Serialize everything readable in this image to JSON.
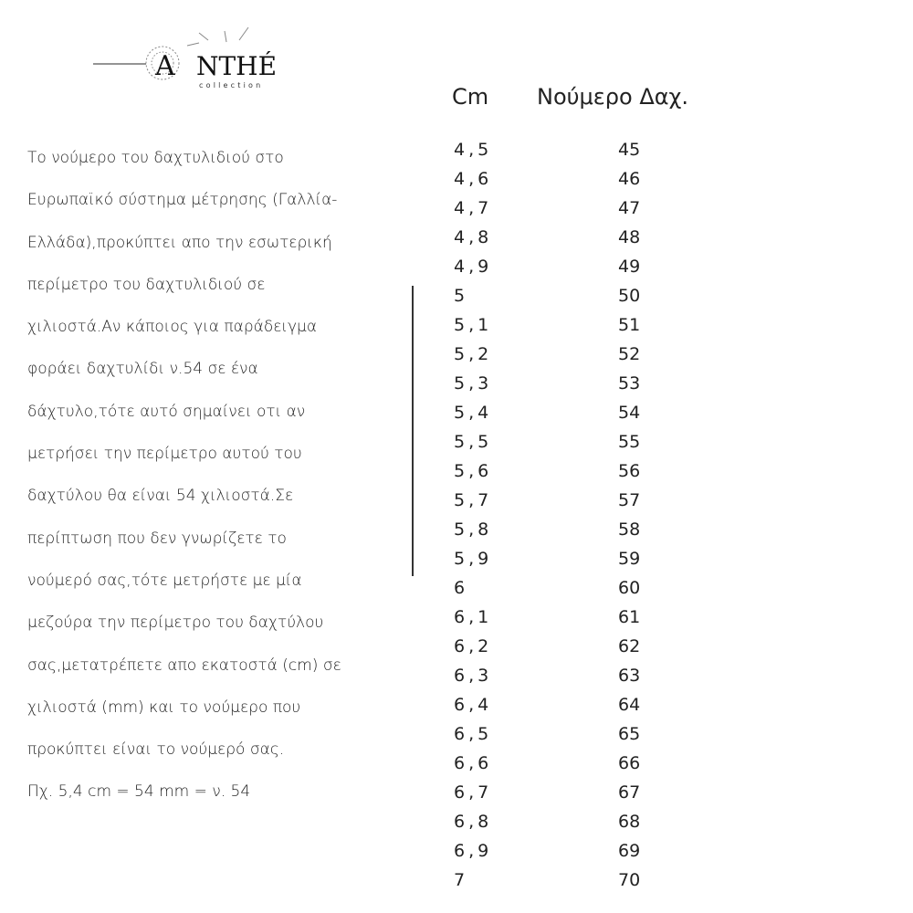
{
  "logo": {
    "text": "ANTHÉ",
    "sub": "collection"
  },
  "paragraph": [
    "Το νούμερο του δαχτυλιδιού στο",
    "Ευρωπαϊκό σύστημα μέτρησης (Γαλλία-",
    "Ελλάδα),προκύπτει απο την εσωτερική",
    "περίμετρο του δαχτυλιδιού σε",
    "χιλιοστά.Αν κάποιος για παράδειγμα",
    "φοράει δαχτυλίδι ν.54 σε ένα",
    "δάχτυλο,τότε αυτό σημαίνει οτι αν",
    "μετρήσει την περίμετρο αυτού του",
    "δαχτύλου θα είναι 54 χιλιοστά.Σε",
    "περίπτωση που δεν γνωρίζετε το",
    "νούμερό σας,τότε μετρήστε με μία",
    "μεζούρα την περίμετρο του δαχτύλου",
    "σας,μετατρέπετε απο εκατοστά (cm) σε",
    "χιλιοστά (mm) και το νούμερο που",
    "προκύπτει είναι το νούμερό σας.",
    "Πχ. 5,4 cm = 54 mm = ν. 54"
  ],
  "table": {
    "headers": {
      "cm": "Cm",
      "size": "Νούμερο Δαχ."
    },
    "cm": [
      "4,5",
      "4,6",
      "4,7",
      "4,8",
      "4,9",
      "5",
      "5,1",
      "5,2",
      "5,3",
      "5,4",
      "5,5",
      "5,6",
      "5,7",
      "5,8",
      "5,9",
      "6",
      "6,1",
      "6,2",
      "6,3",
      "6,4",
      "6,5",
      "6,6",
      "6,7",
      "6,8",
      "6,9",
      "7"
    ],
    "size": [
      "45",
      "46",
      "47",
      "48",
      "49",
      "50",
      "51",
      "52",
      "53",
      "54",
      "55",
      "56",
      "57",
      "58",
      "59",
      "60",
      "61",
      "62",
      "63",
      "64",
      "65",
      "66",
      "67",
      "68",
      "69",
      "70"
    ]
  }
}
